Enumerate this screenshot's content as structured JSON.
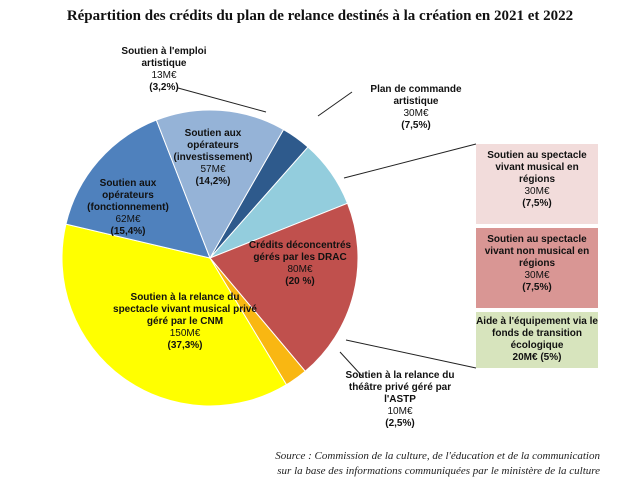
{
  "title": "Répartition des crédits du plan de relance destinés à la création en 2021 et 2022",
  "source_line1": "Source : Commission de la culture, de l'éducation et de la communication",
  "source_line2": "sur la base des informations communiquées par le ministère de la culture",
  "chart_data": {
    "type": "pie",
    "title": "Répartition des crédits du plan de relance destinés à la création en 2021 et 2022",
    "unit": "M€",
    "slices": [
      {
        "label": "Soutien à l'emploi artistique",
        "value": 13,
        "value_text": "13M€",
        "percent_text": "(3,2%)",
        "color": "#2e5a8c"
      },
      {
        "label": "Plan de commande artistique",
        "value": 30,
        "value_text": "30M€",
        "percent_text": "(7,5%)",
        "color": "#93cddd"
      },
      {
        "label": "Crédits déconcentrés gérés par les DRAC",
        "value": 80,
        "value_text": "80M€",
        "percent_text": "(20 %)",
        "color": "#c0504d"
      },
      {
        "label": "Soutien à la relance du théâtre privé géré par l'ASTP",
        "value": 10,
        "value_text": "10M€",
        "percent_text": "(2,5%)",
        "color": "#f9b712"
      },
      {
        "label": "Soutien à la relance du spectacle vivant musical privé géré par le CNM",
        "value": 150,
        "value_text": "150M€",
        "percent_text": "(37,3%)",
        "color": "#ffff00"
      },
      {
        "label": "Soutien aux opérateurs (fonctionnement)",
        "value": 62,
        "value_text": "62M€",
        "percent_text": "(15,4%)",
        "color": "#4f81bd"
      },
      {
        "label": "Soutien aux opérateurs (investissement)",
        "value": 57,
        "value_text": "57M€",
        "percent_text": "(14,2%)",
        "color": "#95b3d7"
      }
    ],
    "drac_breakdown": [
      {
        "label": "Soutien au spectacle vivant musical en régions",
        "value": 30,
        "value_text": "30M€",
        "percent_text": "(7,5%)",
        "color": "#f2dcdb"
      },
      {
        "label": "Soutien au spectacle vivant non musical en régions",
        "value": 30,
        "value_text": "30M€",
        "percent_text": "(7,5%)",
        "color": "#d99694"
      },
      {
        "label": "Aide à l'équipement via le fonds de transition écologique",
        "value": 20,
        "value_text": "20M€ (5%)",
        "percent_text": "",
        "color": "#d7e4bd"
      }
    ]
  }
}
